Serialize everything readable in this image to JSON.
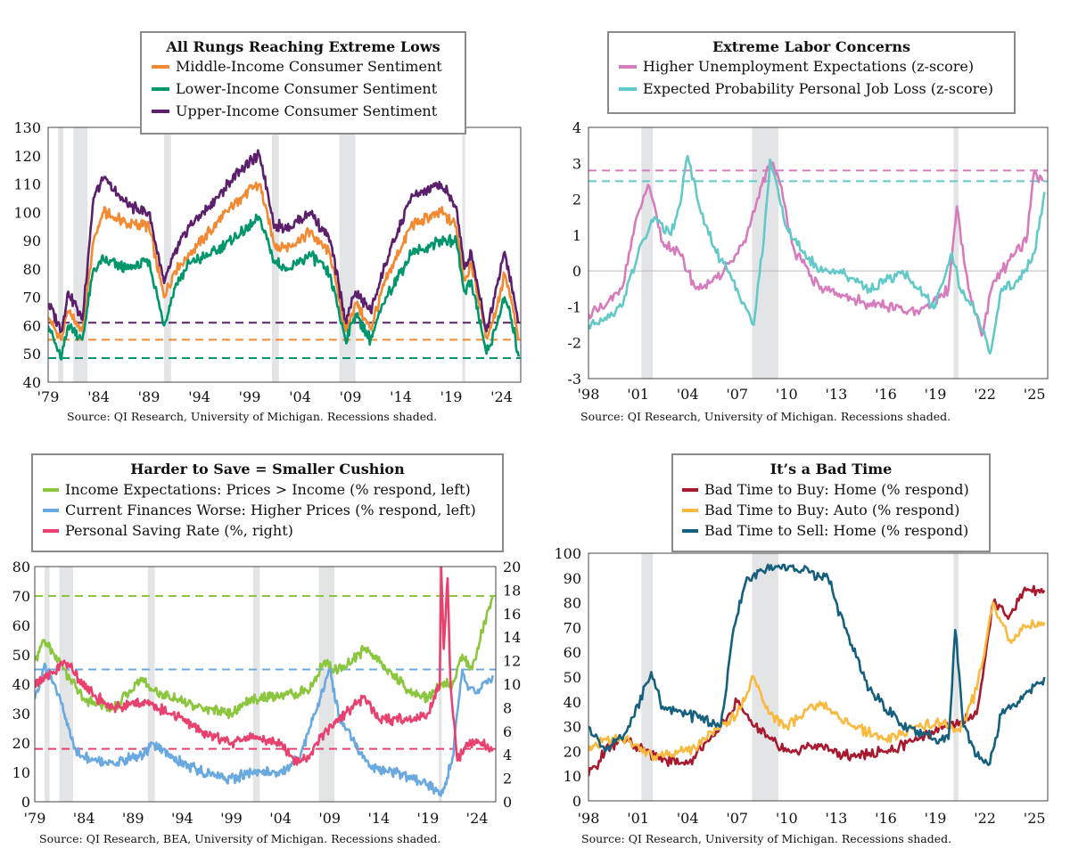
{
  "chart_data": [
    {
      "id": "tl",
      "type": "line",
      "title": "All Rungs Reaching Extreme Lows",
      "source": "Source: QI Research, University of Michigan. Recessions shaded.",
      "xticks": [
        "'79",
        "'84",
        "'89",
        "'94",
        "'99",
        "'04",
        "'09",
        "'14",
        "'19",
        "'24"
      ],
      "xlim": [
        1979,
        2025.9
      ],
      "ylim": [
        40,
        130
      ],
      "yticks": [
        "40",
        "50",
        "60",
        "70",
        "80",
        "90",
        "100",
        "110",
        "120",
        "130"
      ],
      "recessions": [
        [
          1980.0,
          1980.5
        ],
        [
          1981.5,
          1982.9
        ],
        [
          1990.5,
          1991.2
        ],
        [
          2001.2,
          2001.9
        ],
        [
          2007.9,
          2009.5
        ],
        [
          2020.1,
          2020.4
        ]
      ],
      "hlines": [
        {
          "y": 61,
          "color": "#5b1f6b"
        },
        {
          "y": 55,
          "color": "#f18a32"
        },
        {
          "y": 48.5,
          "color": "#00966b"
        }
      ],
      "series": [
        {
          "name": "Middle-Income Consumer Sentiment",
          "color": "#f18a32",
          "x": [
            1979,
            1980.3,
            1981,
            1982.4,
            1983.5,
            1984.5,
            1987,
            1989,
            1990.5,
            1991.5,
            1993,
            1995,
            1998,
            2000,
            2001.5,
            2003,
            2005,
            2007,
            2008.5,
            2009.5,
            2011,
            2012.5,
            2015,
            2018,
            2019.5,
            2020.3,
            2021,
            2022.5,
            2023.5,
            2024.3,
            2025,
            2025.7
          ],
          "values": [
            63,
            55,
            65,
            58,
            90,
            100,
            96,
            95,
            70,
            79,
            85,
            93,
            105,
            110,
            88,
            88,
            93,
            85,
            58,
            68,
            59,
            76,
            95,
            100,
            95,
            76,
            82,
            56,
            66,
            78,
            68,
            55
          ]
        },
        {
          "name": "Lower-Income Consumer Sentiment",
          "color": "#00966b",
          "x": [
            1979,
            1980.3,
            1981,
            1982.4,
            1983.5,
            1984.5,
            1987,
            1989,
            1990.5,
            1991.5,
            1993,
            1995,
            1998,
            2000,
            2001.5,
            2003,
            2005,
            2007,
            2008.5,
            2009.5,
            2011,
            2012.5,
            2015,
            2018,
            2019.5,
            2020.3,
            2021,
            2022.5,
            2023.5,
            2024.3,
            2025,
            2025.7
          ],
          "values": [
            60,
            48,
            60,
            55,
            80,
            83,
            80,
            83,
            60,
            73,
            82,
            85,
            92,
            98,
            82,
            80,
            85,
            78,
            55,
            64,
            55,
            70,
            85,
            90,
            90,
            72,
            76,
            50,
            60,
            70,
            62,
            49
          ]
        },
        {
          "name": "Upper-Income Consumer Sentiment",
          "color": "#5b1f6b",
          "x": [
            1979,
            1980.3,
            1981,
            1982.4,
            1983.5,
            1984.5,
            1987,
            1989,
            1990.5,
            1991.5,
            1993,
            1995,
            1998,
            2000,
            2001.5,
            2003,
            2005,
            2007,
            2008.5,
            2009.5,
            2011,
            2012.5,
            2015,
            2018,
            2019.5,
            2020.3,
            2021,
            2022.5,
            2023.5,
            2024.3,
            2025,
            2025.7
          ],
          "values": [
            68,
            58,
            72,
            62,
            105,
            112,
            102,
            100,
            75,
            85,
            95,
            102,
            115,
            120,
            95,
            95,
            100,
            90,
            62,
            72,
            65,
            82,
            105,
            110,
            102,
            80,
            86,
            58,
            74,
            86,
            74,
            61
          ]
        }
      ]
    },
    {
      "id": "tr",
      "type": "line",
      "title": "Extreme Labor Concerns",
      "source": "Source: QI Research, University of Michigan. Recessions shaded.",
      "xticks": [
        "'98",
        "'01",
        "'04",
        "'07",
        "'10",
        "'13",
        "'16",
        "'19",
        "'22",
        "'25"
      ],
      "xlim": [
        1998,
        2025.8
      ],
      "ylim": [
        -3,
        4
      ],
      "yticks": [
        "-3",
        "-2",
        "-1",
        "0",
        "1",
        "2",
        "3",
        "4"
      ],
      "recessions": [
        [
          2001.2,
          2001.9
        ],
        [
          2007.9,
          2009.5
        ],
        [
          2020.1,
          2020.4
        ]
      ],
      "hlines": [
        {
          "y": 2.8,
          "color": "#d67cbd"
        },
        {
          "y": 2.5,
          "color": "#63c9c8"
        }
      ],
      "series": [
        {
          "name": "Higher Unemployment Expectations (z-score)",
          "color": "#d67cbd",
          "x": [
            1998,
            1999,
            2000,
            2001,
            2001.6,
            2002.5,
            2003.5,
            2004.5,
            2005.5,
            2006.5,
            2007.5,
            2008.5,
            2009,
            2009.5,
            2010.5,
            2012,
            2014,
            2016,
            2018,
            2019.8,
            2020.3,
            2021,
            2021.8,
            2022.5,
            2023.5,
            2024.5,
            2025,
            2025.5
          ],
          "values": [
            -1.2,
            -1,
            -0.5,
            1.6,
            2.4,
            0.8,
            0.5,
            -0.5,
            -0.3,
            0.2,
            0.8,
            2.4,
            3.1,
            2.6,
            0.5,
            -0.5,
            -0.8,
            -1,
            -1.2,
            -0.5,
            1.8,
            -0.5,
            -1.8,
            -0.3,
            0.3,
            0.8,
            2.8,
            2.5
          ]
        },
        {
          "name": "Expected Probability Personal Job Loss (z-score)",
          "color": "#63c9c8",
          "x": [
            1998,
            1999,
            2000,
            2001,
            2002,
            2003,
            2003.5,
            2004,
            2005,
            2006,
            2007,
            2008,
            2008.6,
            2009,
            2010,
            2011,
            2012,
            2013,
            2014,
            2015,
            2016,
            2017,
            2018,
            2019,
            2020,
            2020.5,
            2021.5,
            2022.3,
            2023,
            2024,
            2025,
            2025.6
          ],
          "values": [
            -1.5,
            -1.3,
            -1,
            0.5,
            1.5,
            1,
            1.8,
            3.2,
            1.3,
            0.3,
            -0.5,
            -1.5,
            0.8,
            3.1,
            1.2,
            0.5,
            0,
            0,
            -0.2,
            -0.5,
            -0.3,
            0,
            -0.5,
            -1,
            0.5,
            -0.5,
            -1.2,
            -2.3,
            -0.5,
            -0.3,
            0.5,
            2.2
          ]
        }
      ]
    },
    {
      "id": "bl",
      "type": "line",
      "title": "Harder to Save = Smaller Cushion",
      "source": "Source: QI Research, BEA, University of Michigan. Recessions shaded.",
      "xticks": [
        "'79",
        "'84",
        "'89",
        "'94",
        "'99",
        "'04",
        "'09",
        "'14",
        "'19",
        "'24"
      ],
      "xlim": [
        1979,
        2025.9
      ],
      "ylim": [
        0,
        80
      ],
      "yticks": [
        "0",
        "10",
        "20",
        "30",
        "40",
        "50",
        "60",
        "70",
        "80"
      ],
      "ylim_right": [
        0,
        20
      ],
      "yticks_right": [
        "0",
        "2",
        "4",
        "6",
        "8",
        "10",
        "12",
        "14",
        "16",
        "18",
        "20"
      ],
      "recessions": [
        [
          1980.0,
          1980.5
        ],
        [
          1981.5,
          1982.9
        ],
        [
          1990.5,
          1991.2
        ],
        [
          2001.2,
          2001.9
        ],
        [
          2007.9,
          2009.5
        ],
        [
          2020.1,
          2020.4
        ]
      ],
      "hlines": [
        {
          "y": 70,
          "color": "#8cc63f"
        },
        {
          "y": 45,
          "color": "#6aa9e0"
        },
        {
          "y": 18,
          "color": "#e8416e"
        }
      ],
      "series": [
        {
          "name": "Income Expectations: Prices > Income (% respond, left)",
          "color": "#8cc63f",
          "axis": "left",
          "x": [
            1979,
            1980,
            1981,
            1982,
            1984,
            1987,
            1990,
            1991,
            1993,
            1996,
            1999,
            2001,
            2004,
            2007,
            2008.5,
            2009.5,
            2011,
            2012.5,
            2015,
            2017,
            2019,
            2020.3,
            2021.5,
            2022.5,
            2023.5,
            2024.5,
            2025.6
          ],
          "values": [
            48,
            55,
            50,
            45,
            35,
            32,
            42,
            38,
            35,
            32,
            30,
            35,
            36,
            38,
            48,
            45,
            47,
            52,
            45,
            38,
            35,
            40,
            40,
            50,
            45,
            58,
            70
          ]
        },
        {
          "name": "Current Finances Worse: Higher Prices (% respond, left)",
          "color": "#6aa9e0",
          "axis": "left",
          "x": [
            1979,
            1980,
            1981,
            1982,
            1983,
            1984,
            1987,
            1990,
            1991,
            1993,
            1996,
            1999,
            2001,
            2004,
            2006,
            2008,
            2009,
            2010,
            2013,
            2016,
            2019,
            2020.5,
            2021.5,
            2022.5,
            2023,
            2024,
            2025.6
          ],
          "values": [
            35,
            47,
            40,
            30,
            18,
            15,
            13,
            16,
            20,
            15,
            10,
            8,
            10,
            10,
            15,
            35,
            45,
            28,
            12,
            10,
            6,
            3,
            15,
            45,
            40,
            37,
            43
          ]
        },
        {
          "name": "Personal Saving Rate (%, right)",
          "color": "#e8416e",
          "axis": "right",
          "x": [
            1979,
            1981,
            1982,
            1985,
            1987,
            1990,
            1993,
            1996,
            1999,
            2001,
            2004,
            2005.5,
            2007,
            2008.5,
            2010,
            2012.5,
            2014,
            2017,
            2019,
            2020.2,
            2020.35,
            2020.6,
            2021,
            2021.3,
            2022,
            2023,
            2024,
            2025.6
          ],
          "values": [
            10,
            11,
            12,
            9,
            8,
            8.5,
            7.5,
            6,
            5,
            5.5,
            5,
            3.5,
            4,
            6,
            7,
            9,
            7,
            7,
            7.5,
            10,
            20,
            13,
            19,
            10,
            3.5,
            5,
            5,
            4.5
          ]
        }
      ]
    },
    {
      "id": "br",
      "type": "line",
      "title": "It’s a Bad Time",
      "source": "Source: QI Research, University of Michigan. Recessions shaded.",
      "xticks": [
        "'98",
        "'01",
        "'04",
        "'07",
        "'10",
        "'13",
        "'16",
        "'19",
        "'22",
        "'25"
      ],
      "xlim": [
        1998,
        2025.8
      ],
      "ylim": [
        0,
        100
      ],
      "yticks": [
        "0",
        "10",
        "20",
        "30",
        "40",
        "50",
        "60",
        "70",
        "80",
        "90",
        "100"
      ],
      "recessions": [
        [
          2001.2,
          2001.9
        ],
        [
          2007.9,
          2009.5
        ],
        [
          2020.1,
          2020.4
        ]
      ],
      "hlines": [],
      "series": [
        {
          "name": "Bad Time to Buy: Home (% respond)",
          "color": "#a6192e",
          "x": [
            1998,
            1999,
            2000,
            2002,
            2004,
            2006,
            2007,
            2008,
            2009,
            2010,
            2012,
            2014,
            2016,
            2018,
            2019.5,
            2020.5,
            2021.5,
            2022.5,
            2023.5,
            2024.5,
            2025.6
          ],
          "values": [
            10,
            20,
            25,
            18,
            15,
            30,
            40,
            30,
            25,
            20,
            22,
            18,
            20,
            25,
            30,
            32,
            35,
            80,
            75,
            85,
            85
          ]
        },
        {
          "name": "Bad Time to Buy: Auto (% respond)",
          "color": "#f9b93f",
          "x": [
            1998,
            1999,
            2000,
            2002,
            2004,
            2006,
            2007,
            2008,
            2009,
            2010,
            2012,
            2014,
            2016,
            2018,
            2019.5,
            2020.5,
            2021.5,
            2022.5,
            2023.5,
            2024.5,
            2025.6
          ],
          "values": [
            20,
            25,
            25,
            18,
            20,
            30,
            35,
            50,
            35,
            30,
            40,
            30,
            25,
            30,
            32,
            28,
            45,
            80,
            65,
            70,
            72
          ]
        },
        {
          "name": "Bad Time to Sell: Home (% respond)",
          "color": "#155f7f",
          "x": [
            1998,
            1999,
            2000.5,
            2001.8,
            2002.5,
            2004,
            2006,
            2006.8,
            2007.5,
            2008.5,
            2009.5,
            2011,
            2012.5,
            2013.5,
            2015,
            2017,
            2019,
            2019.8,
            2020.2,
            2020.7,
            2021.5,
            2022.3,
            2023,
            2024,
            2025.6
          ],
          "values": [
            30,
            20,
            30,
            52,
            38,
            35,
            30,
            70,
            88,
            93,
            95,
            93,
            90,
            70,
            45,
            30,
            25,
            25,
            69,
            30,
            18,
            15,
            35,
            40,
            50
          ]
        }
      ]
    }
  ]
}
